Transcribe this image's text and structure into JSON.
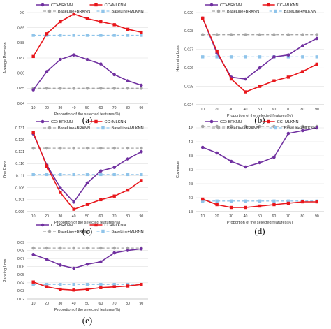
{
  "legend_labels": [
    "CC+BRKNN",
    "CC+MLKNN",
    "BaseLine+BRKNN",
    "BaseLine+MLKNN"
  ],
  "colors": {
    "CC+BRKNN": "#7030a0",
    "CC+MLKNN": "#e8161b",
    "BaseLine+BRKNN": "#a6a6a6",
    "BaseLine+MLKNN": "#8fc4ea"
  },
  "chart_data": [
    {
      "type": "line",
      "panel_label": "(a)",
      "x": [
        10,
        20,
        30,
        40,
        50,
        60,
        70,
        80,
        90
      ],
      "xlabel": "Proportion of the selected features(%)",
      "ylabel": "Average Precision",
      "ylim": [
        0.84,
        0.9
      ],
      "yticks": [
        "0.84",
        "0.85",
        "0.86",
        "0.87",
        "0.88",
        "0.89",
        "0.9"
      ],
      "legend": "top",
      "series": [
        {
          "name": "CC+BRKNN",
          "values": [
            0.849,
            0.861,
            0.869,
            0.872,
            0.869,
            0.866,
            0.859,
            0.855,
            0.852
          ]
        },
        {
          "name": "CC+MLKNN",
          "values": [
            0.871,
            0.886,
            0.894,
            0.899,
            0.896,
            0.894,
            0.892,
            0.889,
            0.887
          ]
        },
        {
          "name": "BaseLine+BRKNN",
          "values": [
            0.85,
            0.85,
            0.85,
            0.85,
            0.85,
            0.85,
            0.85,
            0.85,
            0.85
          ]
        },
        {
          "name": "BaseLine+MLKNN",
          "values": [
            0.885,
            0.885,
            0.885,
            0.885,
            0.885,
            0.885,
            0.885,
            0.885,
            0.885
          ]
        }
      ]
    },
    {
      "type": "line",
      "panel_label": "(b)",
      "x": [
        10,
        20,
        30,
        40,
        50,
        60,
        70,
        80,
        90
      ],
      "xlabel": "Proportion of the selected features(%)",
      "ylabel": "Hamming Loss",
      "ylim": [
        0.024,
        0.029
      ],
      "yticks": [
        "0.024",
        "0.025",
        "0.026",
        "0.027",
        "0.028",
        "0.029"
      ],
      "legend": "top",
      "series": [
        {
          "name": "CC+BRKNN",
          "values": [
            0.0287,
            0.0268,
            0.0255,
            0.0254,
            0.026,
            0.0266,
            0.0267,
            0.0272,
            0.0276
          ]
        },
        {
          "name": "CC+MLKNN",
          "values": [
            0.0287,
            0.0269,
            0.0254,
            0.0247,
            0.025,
            0.0253,
            0.0255,
            0.0258,
            0.0262
          ]
        },
        {
          "name": "BaseLine+BRKNN",
          "values": [
            0.0278,
            0.0278,
            0.0278,
            0.0278,
            0.0278,
            0.0278,
            0.0278,
            0.0278,
            0.0278
          ]
        },
        {
          "name": "BaseLine+MLKNN",
          "values": [
            0.0266,
            0.0266,
            0.0266,
            0.0266,
            0.0266,
            0.0266,
            0.0266,
            0.0266,
            0.0266
          ]
        }
      ]
    },
    {
      "type": "line",
      "panel_label": "(c)",
      "x": [
        10,
        20,
        30,
        40,
        50,
        60,
        70,
        80,
        90
      ],
      "xlabel": "Proportion of the selected features(%)",
      "ylabel": "One Error",
      "ylim": [
        0.096,
        0.131
      ],
      "yticks": [
        "0.096",
        "0.101",
        "0.106",
        "0.111",
        "0.116",
        "0.121",
        "0.126",
        "0.131"
      ],
      "legend": "top",
      "series": [
        {
          "name": "CC+BRKNN",
          "values": [
            0.1285,
            0.1155,
            0.106,
            0.1,
            0.108,
            0.113,
            0.1145,
            0.118,
            0.121
          ]
        },
        {
          "name": "CC+MLKNN",
          "values": [
            0.129,
            0.115,
            0.104,
            0.097,
            0.099,
            0.101,
            0.1025,
            0.105,
            0.109
          ]
        },
        {
          "name": "BaseLine+BRKNN",
          "values": [
            0.1225,
            0.1225,
            0.1225,
            0.1225,
            0.1225,
            0.1225,
            0.1225,
            0.1225,
            0.1225
          ]
        },
        {
          "name": "BaseLine+MLKNN",
          "values": [
            0.1115,
            0.1115,
            0.1115,
            0.1115,
            0.1115,
            0.1115,
            0.1115,
            0.1115,
            0.1115
          ]
        }
      ]
    },
    {
      "type": "line",
      "panel_label": "(d)",
      "x": [
        10,
        20,
        30,
        40,
        50,
        60,
        70,
        80,
        90
      ],
      "xlabel": "Proportion of the selected features(%)",
      "ylabel": "Coverage",
      "ylim": [
        1.8,
        4.8
      ],
      "yticks": [
        "1.8",
        "2.3",
        "2.8",
        "3.3",
        "3.8",
        "4.3",
        "4.8"
      ],
      "legend": "top",
      "series": [
        {
          "name": "CC+BRKNN",
          "values": [
            4.1,
            3.9,
            3.6,
            3.4,
            3.55,
            3.75,
            4.6,
            4.7,
            4.8
          ]
        },
        {
          "name": "CC+MLKNN",
          "values": [
            2.25,
            2.05,
            1.95,
            1.95,
            2.0,
            2.05,
            2.1,
            2.15,
            2.15
          ]
        },
        {
          "name": "BaseLine+BRKNN",
          "values": [
            4.85,
            4.85,
            4.85,
            4.85,
            4.85,
            4.85,
            4.85,
            4.85,
            4.85
          ]
        },
        {
          "name": "BaseLine+MLKNN",
          "values": [
            2.18,
            2.18,
            2.18,
            2.18,
            2.18,
            2.18,
            2.18,
            2.18,
            2.18
          ]
        }
      ]
    },
    {
      "type": "line",
      "panel_label": "(e)",
      "x": [
        10,
        20,
        30,
        40,
        50,
        60,
        70,
        80,
        90
      ],
      "xlabel": "Proportion of the selected features(%)",
      "ylabel": "Ranking Loss",
      "ylim": [
        0.02,
        0.09
      ],
      "yticks": [
        "0.02",
        "0.03",
        "0.04",
        "0.05",
        "0.06",
        "0.07",
        "0.08",
        "0.09"
      ],
      "legend": "top",
      "series": [
        {
          "name": "CC+BRKNN",
          "values": [
            0.075,
            0.069,
            0.062,
            0.058,
            0.063,
            0.066,
            0.077,
            0.08,
            0.082
          ]
        },
        {
          "name": "CC+MLKNN",
          "values": [
            0.041,
            0.035,
            0.032,
            0.031,
            0.032,
            0.034,
            0.035,
            0.036,
            0.038
          ]
        },
        {
          "name": "BaseLine+BRKNN",
          "values": [
            0.083,
            0.083,
            0.083,
            0.083,
            0.083,
            0.083,
            0.083,
            0.083,
            0.083
          ]
        },
        {
          "name": "BaseLine+MLKNN",
          "values": [
            0.038,
            0.038,
            0.038,
            0.038,
            0.038,
            0.038,
            0.038,
            0.038,
            0.038
          ]
        }
      ]
    }
  ]
}
